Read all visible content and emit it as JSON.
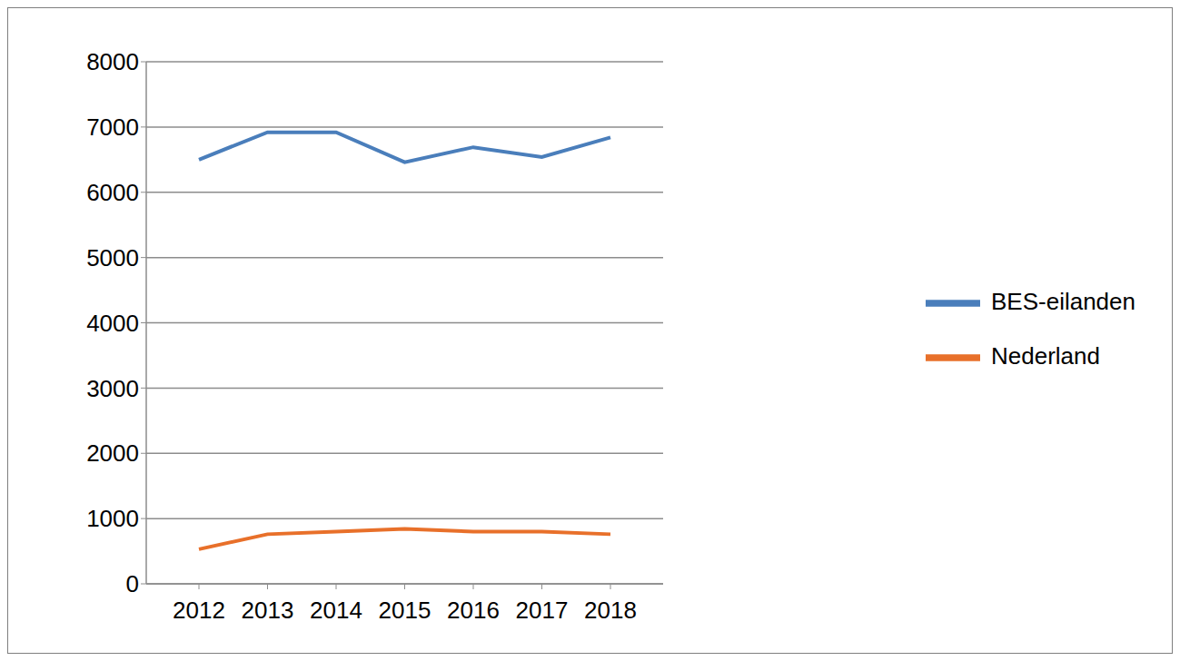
{
  "chart_data": {
    "type": "line",
    "categories": [
      "2012",
      "2013",
      "2014",
      "2015",
      "2016",
      "2017",
      "2018"
    ],
    "series": [
      {
        "name": "BES-eilanden",
        "color": "#4a7ebb",
        "values": [
          6500,
          6920,
          6920,
          6460,
          6690,
          6540,
          6840
        ]
      },
      {
        "name": "Nederland",
        "color": "#e8702a",
        "values": [
          530,
          760,
          800,
          840,
          800,
          800,
          760
        ]
      }
    ],
    "ylim": [
      0,
      8000
    ],
    "yticks": [
      0,
      1000,
      2000,
      3000,
      4000,
      5000,
      6000,
      7000,
      8000
    ],
    "grid": true,
    "legend": "right"
  }
}
